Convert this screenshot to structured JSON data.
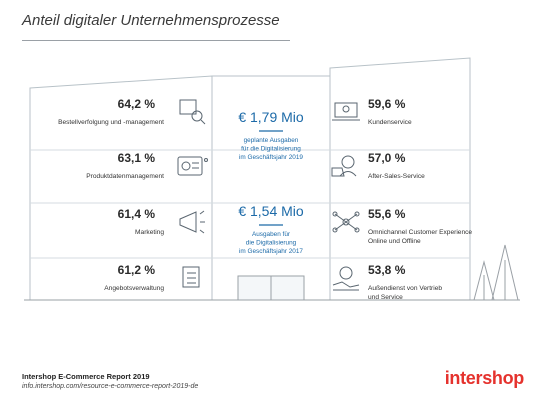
{
  "title": "Anteil digitaler Unternehmensprozesse",
  "footer": {
    "source": "Intershop E-Commerce Report 2019",
    "url": "info.intershop.com/resource-e-commerce-report-2019-de",
    "brand": "intershop"
  },
  "colors": {
    "accent": "#1c6aa8",
    "brand": "#e5322d",
    "panel": "#ecf1f4",
    "line": "#b8c2c8"
  },
  "chart_data": {
    "type": "table",
    "left": [
      {
        "value": 64.2,
        "display": "64,2 %",
        "label": "Bestellverfolgung und -management",
        "icon": "package-search-icon"
      },
      {
        "value": 63.1,
        "display": "63,1 %",
        "label": "Produktdatenmanagement",
        "icon": "dashboard-icon"
      },
      {
        "value": 61.4,
        "display": "61,4 %",
        "label": "Marketing",
        "icon": "megaphone-icon"
      },
      {
        "value": 61.2,
        "display": "61,2 %",
        "label": "Angebotsverwaltung",
        "icon": "checklist-icon"
      }
    ],
    "right": [
      {
        "value": 59.6,
        "display": "59,6 %",
        "label": [
          "Kundenservice"
        ],
        "icon": "support-laptop-icon"
      },
      {
        "value": 57.0,
        "display": "57,0 %",
        "label": [
          "After-Sales-Service"
        ],
        "icon": "headset-agent-icon"
      },
      {
        "value": 55.6,
        "display": "55,6 %",
        "label": [
          "Omnichannel Customer Experience",
          "Online und Offline"
        ],
        "icon": "network-icon"
      },
      {
        "value": 53.8,
        "display": "53,8 %",
        "label": [
          "Außendienst von Vertrieb",
          "und Service"
        ],
        "icon": "handshake-icon"
      }
    ],
    "center": [
      {
        "value": 1.79,
        "display": "€ 1,79 Mio",
        "label": [
          "geplante Ausgaben",
          "für die Digitalisierung",
          "im Geschäftsjahr 2019"
        ]
      },
      {
        "value": 1.54,
        "display": "€ 1,54 Mio",
        "label": [
          "Ausgaben für",
          "die Digitalisierung",
          "im Geschäftsjahr 2017"
        ]
      }
    ]
  }
}
